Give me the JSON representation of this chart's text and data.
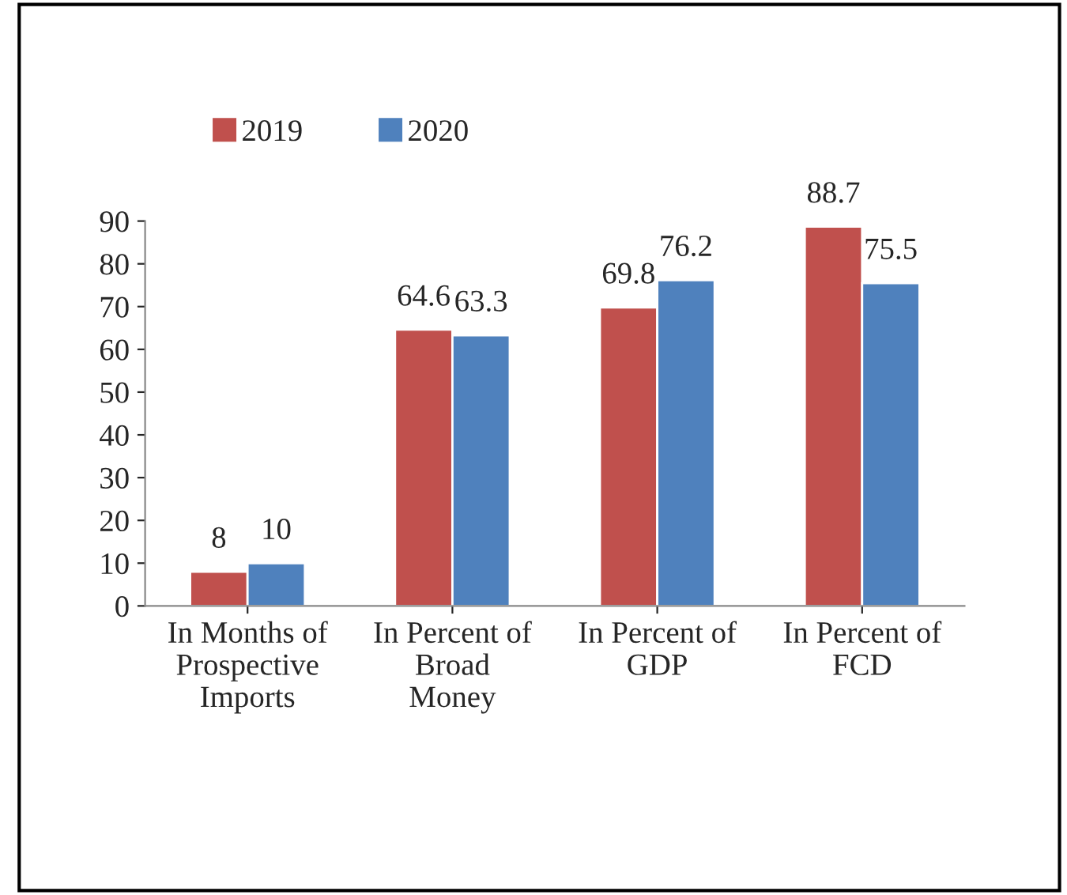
{
  "chart_data": {
    "type": "bar",
    "categories": [
      "In Months of\nProspective\nImports",
      "In Percent of\nBroad\nMoney",
      "In Percent of\nGDP",
      "In Percent of\nFCD"
    ],
    "series": [
      {
        "name": "2019",
        "color": "#c0504d",
        "values": [
          8,
          64.6,
          69.8,
          88.7
        ]
      },
      {
        "name": "2020",
        "color": "#4f81bd",
        "values": [
          10,
          63.3,
          76.2,
          75.5
        ]
      }
    ],
    "ylim": [
      0,
      90
    ],
    "yticks": [
      0,
      10,
      20,
      30,
      40,
      50,
      60,
      70,
      80,
      90
    ],
    "data_labels": true,
    "grid": false,
    "legend": "top left"
  }
}
